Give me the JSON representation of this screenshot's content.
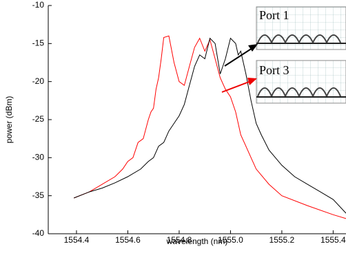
{
  "chart_data": {
    "type": "line",
    "xlabel": "wavelength (nm)",
    "ylabel": "power (dBm)",
    "xlim": [
      1554.29,
      1555.45
    ],
    "ylim": [
      -40,
      -10
    ],
    "xticks": [
      1554.4,
      1554.6,
      1554.8,
      {
        "value": 1555.0,
        "label": "1555.0"
      },
      1555.2,
      1555.4
    ],
    "yticks": [
      -40,
      -35,
      -30,
      -25,
      -20,
      -15,
      -10
    ],
    "annotations": [
      "Port 1",
      "Port 3"
    ],
    "series": [
      {
        "color": "#ff0000",
        "x": [
          1554.39,
          1554.45,
          1554.5,
          1554.55,
          1554.58,
          1554.6,
          1554.62,
          1554.64,
          1554.66,
          1554.68,
          1554.69,
          1554.7,
          1554.71,
          1554.72,
          1554.73,
          1554.74,
          1554.76,
          1554.78,
          1554.8,
          1554.82,
          1554.84,
          1554.86,
          1554.88,
          1554.9,
          1554.92,
          1554.94,
          1554.96,
          1554.98,
          1555.0,
          1555.02,
          1555.04,
          1555.06,
          1555.08,
          1555.1,
          1555.15,
          1555.2,
          1555.3,
          1555.4,
          1555.45
        ],
        "values": [
          -35.3,
          -34.5,
          -33.5,
          -32.5,
          -31.5,
          -30.5,
          -30,
          -28,
          -27.5,
          -25,
          -24,
          -23.5,
          -21,
          -19.5,
          -17,
          -14.2,
          -14,
          -17.5,
          -20,
          -20.5,
          -18,
          -15.5,
          -14.3,
          -16,
          -14.5,
          -17,
          -19.5,
          -21,
          -22,
          -24,
          -27,
          -28.5,
          -30,
          -31.5,
          -33.5,
          -35,
          -36.3,
          -37.5,
          -38
        ]
      },
      {
        "color": "#000000",
        "x": [
          1554.39,
          1554.45,
          1554.5,
          1554.55,
          1554.6,
          1554.65,
          1554.68,
          1554.7,
          1554.72,
          1554.74,
          1554.76,
          1554.78,
          1554.8,
          1554.82,
          1554.84,
          1554.86,
          1554.88,
          1554.9,
          1554.92,
          1554.94,
          1554.96,
          1554.98,
          1555.0,
          1555.02,
          1555.03,
          1555.04,
          1555.06,
          1555.08,
          1555.1,
          1555.12,
          1555.15,
          1555.2,
          1555.25,
          1555.3,
          1555.35,
          1555.4,
          1555.45
        ],
        "values": [
          -35.3,
          -34.5,
          -34,
          -33.3,
          -32.5,
          -31.5,
          -30.5,
          -30,
          -28.5,
          -28,
          -26.5,
          -25.5,
          -24.5,
          -23,
          -20.5,
          -18,
          -16.5,
          -17,
          -14.3,
          -15,
          -19,
          -17,
          -14.3,
          -15,
          -16.5,
          -16,
          -19,
          -22.5,
          -25.5,
          -27,
          -29,
          -31,
          -32.5,
          -33.5,
          -34.5,
          -35.5,
          -37.3
        ]
      }
    ]
  }
}
